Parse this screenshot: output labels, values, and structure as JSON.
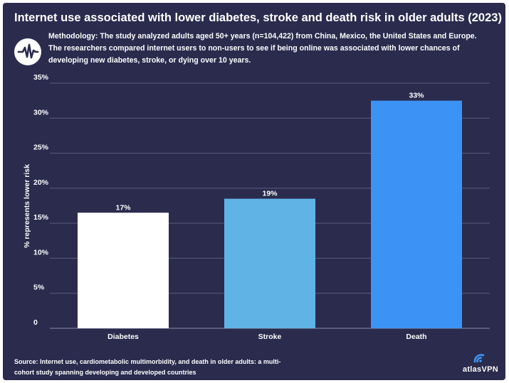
{
  "title": "Internet use associated with lower diabetes, stroke and death risk in older adults (2023)",
  "methodology": "Methodology: The study analyzed adults aged 50+ years (n=104,422) from China, Mexico, the United States and Europe. The researchers compared internet users to non-users to see if being online was associated with lower chances of developing new diabetes, stroke, or dying over 10 years.",
  "source": "Source: Internet use, cardiometabolic multimorbidity, and death in older adults: a multi-cohort study spanning developing and developed countries",
  "brand": {
    "name": "atlasVPN",
    "icon": "atlas-vpn-logo-icon"
  },
  "logo_icon": "pulse-icon",
  "colors": {
    "background": "#2a2b4d",
    "grid": "#5a5c7e",
    "text": "#ffffff",
    "bars": [
      "#ffffff",
      "#5fb4e5",
      "#3d93f5"
    ]
  },
  "chart_data": {
    "type": "bar",
    "categories": [
      "Diabetes",
      "Stroke",
      "Death"
    ],
    "values": [
      16.5,
      18.5,
      32.5
    ],
    "data_labels": [
      "17%",
      "19%",
      "33%"
    ],
    "title": "Internet use associated with lower diabetes, stroke and death risk in older adults (2023)",
    "xlabel": "",
    "ylabel": "% represents lower risk",
    "ylim": [
      0,
      35
    ],
    "yticks": [
      0,
      5,
      10,
      15,
      20,
      25,
      30,
      35
    ],
    "ytick_labels": [
      "0",
      "5%",
      "10%",
      "15%",
      "20%",
      "25%",
      "30%",
      "35%"
    ],
    "grid": true,
    "legend": "none"
  }
}
